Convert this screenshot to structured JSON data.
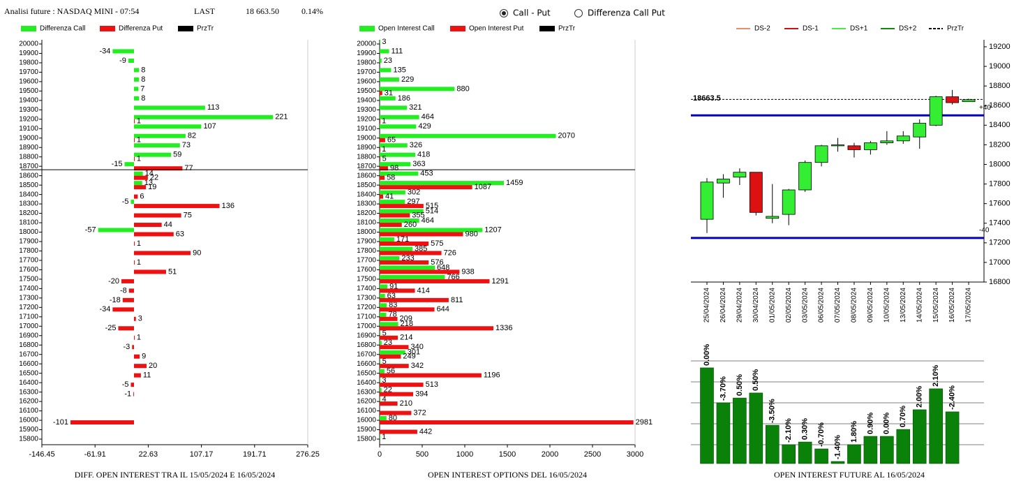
{
  "header": {
    "title": "Analisi future : NASDAQ MINI - 07:54",
    "last_label": "LAST",
    "last": "18 663.50",
    "change": "0.14%"
  },
  "options": {
    "items": [
      "Call - Put",
      "Differenza Call Put"
    ],
    "selected": 0
  },
  "chart_data": [
    {
      "type": "hbar",
      "title": "DIFF. OPEN INTEREST TRA IL 15/05/2024 E 16/05/2024",
      "categories": [
        "20000",
        "19900",
        "19800",
        "19700",
        "19600",
        "19500",
        "19400",
        "19300",
        "19200",
        "19100",
        "19000",
        "18900",
        "18800",
        "18700",
        "18600",
        "18500",
        "18400",
        "18300",
        "18200",
        "18100",
        "18000",
        "17900",
        "17800",
        "17700",
        "17600",
        "17500",
        "17400",
        "17300",
        "17200",
        "17100",
        "17000",
        "16900",
        "16800",
        "16700",
        "16600",
        "16500",
        "16400",
        "16300",
        "16200",
        "16100",
        "16000",
        "15900",
        "15800"
      ],
      "series": [
        {
          "name": "Differenza Call",
          "color": "#22ee22",
          "values": [
            null,
            -34,
            -9,
            8,
            8,
            7,
            8,
            113,
            221,
            107,
            82,
            73,
            59,
            -15,
            14,
            13,
            null,
            -5,
            null,
            null,
            -57,
            null,
            null,
            null,
            null,
            null,
            null,
            null,
            null,
            null,
            null,
            null,
            null,
            null,
            null,
            null,
            null,
            null,
            null,
            null,
            null,
            null,
            null
          ]
        },
        {
          "name": "Differenza Put",
          "color": "#ee1111",
          "values": [
            null,
            null,
            null,
            null,
            null,
            null,
            null,
            null,
            1,
            null,
            1,
            null,
            1,
            77,
            22,
            19,
            6,
            136,
            75,
            44,
            63,
            1,
            90,
            1,
            51,
            -20,
            -8,
            -18,
            -34,
            3,
            -25,
            1,
            -3,
            9,
            20,
            11,
            -5,
            -1,
            null,
            null,
            -101,
            null,
            null
          ]
        }
      ],
      "reference": {
        "name": "PrzTr",
        "color": "#000000",
        "value": 18663.5
      },
      "xlim": [
        -146.45,
        276.25
      ],
      "xticks": [
        -146.45,
        -61.91,
        22.63,
        107.17,
        191.71,
        276.25
      ]
    },
    {
      "type": "hbar",
      "title": "OPEN INTEREST OPTIONS DEL 16/05/2024",
      "categories": [
        "20000",
        "19900",
        "19800",
        "19700",
        "19600",
        "19500",
        "19400",
        "19300",
        "19200",
        "19100",
        "19000",
        "18900",
        "18800",
        "18700",
        "18600",
        "18500",
        "18400",
        "18300",
        "18200",
        "18100",
        "18000",
        "17900",
        "17800",
        "17700",
        "17600",
        "17500",
        "17400",
        "17300",
        "17200",
        "17100",
        "17000",
        "16900",
        "16800",
        "16700",
        "16600",
        "16500",
        "16400",
        "16300",
        "16200",
        "16100",
        "16000",
        "15900",
        "15800"
      ],
      "series": [
        {
          "name": "Open Interest Call",
          "color": "#22ee22",
          "values": [
            3,
            111,
            23,
            135,
            229,
            880,
            186,
            321,
            464,
            429,
            2070,
            326,
            418,
            363,
            453,
            1459,
            302,
            297,
            514,
            464,
            1207,
            171,
            385,
            233,
            648,
            766,
            91,
            63,
            83,
            78,
            218,
            5,
            23,
            301,
            5,
            56,
            3,
            22,
            4,
            null,
            80,
            null,
            1
          ]
        },
        {
          "name": "Open Interest Put",
          "color": "#ee1111",
          "values": [
            null,
            null,
            null,
            null,
            null,
            31,
            null,
            null,
            1,
            null,
            65,
            1,
            5,
            98,
            58,
            1087,
            41,
            515,
            355,
            260,
            980,
            575,
            726,
            576,
            938,
            1291,
            414,
            811,
            644,
            209,
            1336,
            214,
            340,
            249,
            342,
            1196,
            513,
            394,
            210,
            372,
            2981,
            442,
            null
          ]
        }
      ],
      "reference": {
        "name": "PrzTr",
        "color": "#000000",
        "value": 18663.5
      },
      "xlim": [
        0,
        3000
      ],
      "xticks": [
        0,
        500,
        1000,
        1500,
        2000,
        2500,
        3000
      ]
    },
    {
      "type": "candlestick",
      "categories": [
        "25/04/2024",
        "26/04/2024",
        "29/04/2024",
        "30/04/2024",
        "01/05/2024",
        "02/05/2024",
        "03/05/2024",
        "06/05/2024",
        "07/05/2024",
        "08/05/2024",
        "09/05/2024",
        "10/05/2024",
        "13/05/2024",
        "14/05/2024",
        "15/05/2024",
        "16/05/2024",
        "17/05/2024"
      ],
      "open": [
        17440,
        17810,
        17870,
        17920,
        17450,
        17490,
        17740,
        18020,
        18190,
        18190,
        18150,
        18220,
        18240,
        18280,
        18400,
        18690,
        18640
      ],
      "high": [
        17860,
        17900,
        17960,
        17920,
        17800,
        17750,
        18040,
        18200,
        18270,
        18220,
        18240,
        18340,
        18340,
        18460,
        18700,
        18760,
        18670
      ],
      "low": [
        17300,
        17660,
        17790,
        17480,
        17400,
        17380,
        17720,
        17980,
        18130,
        18070,
        18100,
        18200,
        18210,
        18160,
        18390,
        18610,
        18640
      ],
      "close": [
        17820,
        17850,
        17920,
        17510,
        17470,
        17740,
        18020,
        18190,
        18200,
        18150,
        18220,
        18240,
        18290,
        18420,
        18690,
        18630,
        18660
      ],
      "up_color": "#33ee33",
      "down_color": "#dd1111",
      "legend": [
        {
          "name": "DS-2",
          "color": "#f08a6a"
        },
        {
          "name": "DS-1",
          "color": "#cc1111"
        },
        {
          "name": "DS+1",
          "color": "#44ee44"
        },
        {
          "name": "DS+2",
          "color": "#118811"
        },
        {
          "name": "PrzTr",
          "color": "#000000"
        }
      ],
      "reference": {
        "value": 18663.5
      },
      "lines": [
        {
          "value": 18500,
          "label": "+40",
          "color": "#0000bb"
        },
        {
          "value": 17250,
          "label": "-40",
          "color": "#0000bb"
        }
      ],
      "ylim": [
        16800,
        19200
      ],
      "yticks": [
        16800,
        17000,
        17200,
        17400,
        17600,
        17800,
        18000,
        18200,
        18400,
        18600,
        18800,
        19000,
        19200
      ]
    },
    {
      "type": "bar",
      "title": "OPEN INTEREST FUTURE AL 16/05/2024",
      "values": [
        4.67,
        3.0,
        3.23,
        3.47,
        1.93,
        1.0,
        1.13,
        0.8,
        0.2,
        1.0,
        1.4,
        1.4,
        1.73,
        2.67,
        3.67,
        2.57
      ],
      "changes": [
        0.0,
        -3.7,
        0.5,
        0.5,
        -3.5,
        -2.1,
        0.3,
        -0.7,
        -1.4,
        1.8,
        0.9,
        0.0,
        0.7,
        2.0,
        2.1,
        -2.4
      ],
      "change_labels": [
        "0.00%",
        "-3.70%",
        "0.50%",
        "0.50%",
        "-3.50%",
        "-2.10%",
        "0.30%",
        "-0.70%",
        "-1.40%",
        "1.80%",
        "0.90%",
        "0.00%",
        "0.70%",
        "2.00%",
        "2.10%",
        "-2.40%"
      ],
      "color": "#0a820a",
      "ylim": [
        0.1,
        5.4
      ],
      "grid_lines": [
        1,
        2,
        3,
        4,
        5
      ]
    }
  ]
}
